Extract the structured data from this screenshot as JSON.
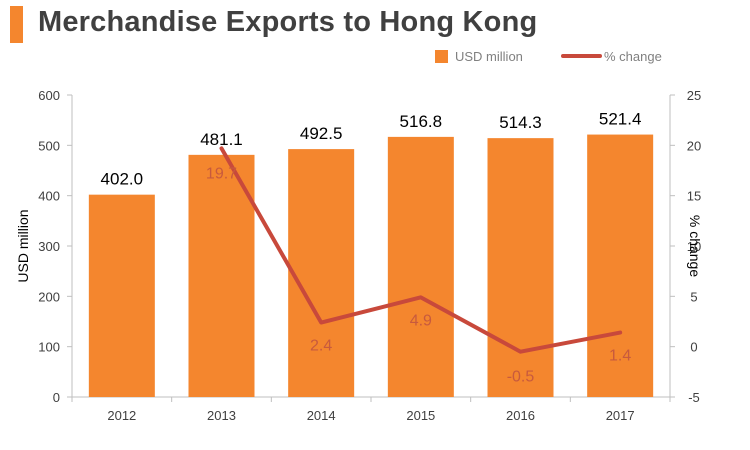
{
  "title": "Merchandise Exports to Hong Kong",
  "colors": {
    "bar": "#f4862e",
    "line": "#c8493b",
    "accent_bar": "#f4862e",
    "title_text": "#404040"
  },
  "chart_data": {
    "type": "bar",
    "categories": [
      "2012",
      "2013",
      "2014",
      "2015",
      "2016",
      "2017"
    ],
    "series": [
      {
        "name": "USD million",
        "type": "bar",
        "axis": "left",
        "values": [
          402.0,
          481.1,
          492.5,
          516.8,
          514.3,
          521.4
        ],
        "labels": [
          "402.0",
          "481.1",
          "492.5",
          "516.8",
          "514.3",
          "521.4"
        ]
      },
      {
        "name": "% change",
        "type": "line",
        "axis": "right",
        "values": [
          null,
          19.7,
          2.4,
          4.9,
          -0.5,
          1.4
        ],
        "labels": [
          "",
          "19.7",
          "2.4",
          "4.9",
          "-0.5",
          "1.4"
        ]
      }
    ],
    "ylabel": "USD million",
    "y2label": "% change",
    "ylim": [
      0,
      600
    ],
    "y2lim": [
      -5,
      25
    ],
    "yticks": [
      "0",
      "100",
      "200",
      "300",
      "400",
      "500",
      "600"
    ],
    "y2ticks": [
      "-5",
      "0",
      "5",
      "10",
      "15",
      "20",
      "25"
    ],
    "legend": "top-right",
    "grid": false
  }
}
